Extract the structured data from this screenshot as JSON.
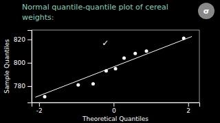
{
  "chart_data": {
    "type": "scatter",
    "title": "Normal quantile-quantile plot of cereal",
    "subtitle": "weights:",
    "x_label": "Theoretical Quantiles",
    "y_label": "Sample Quantiles",
    "series": [
      {
        "type": "scatter",
        "color": "#ffffff",
        "x": [
          -1.85,
          -0.95,
          -0.55,
          -0.2,
          0.05,
          0.28,
          0.58,
          0.88,
          1.88
        ],
        "values": [
          771,
          781,
          782,
          793,
          795,
          804,
          808,
          810,
          821
        ]
      },
      {
        "type": "line",
        "color": "#ffffff",
        "x": [
          -2.1,
          2.1
        ],
        "values": [
          770.5,
          822.5
        ]
      }
    ],
    "annotations": [
      {
        "text": "✓",
        "x": -0.22,
        "y": 817
      },
      {
        "text": "σ"
      }
    ],
    "xlim": [
      -2.2,
      2.3
    ],
    "ylim": [
      766,
      828
    ],
    "xticks": [
      -2,
      0,
      2
    ],
    "yticks": [
      780,
      800,
      820
    ],
    "grid": false
  }
}
